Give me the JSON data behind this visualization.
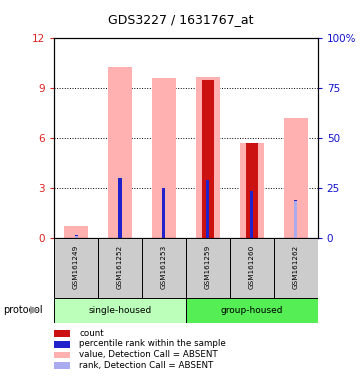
{
  "title": "GDS3227 / 1631767_at",
  "samples": [
    "GSM161249",
    "GSM161252",
    "GSM161253",
    "GSM161259",
    "GSM161260",
    "GSM161262"
  ],
  "pink_bars": [
    0.7,
    10.3,
    9.6,
    9.7,
    5.7,
    7.2
  ],
  "red_bars": [
    0.0,
    0.0,
    0.0,
    9.5,
    5.7,
    0.0
  ],
  "blue_bars": [
    0.2,
    3.6,
    3.0,
    3.5,
    2.8,
    2.3
  ],
  "lightblue_bars": [
    0.15,
    0.0,
    0.0,
    0.0,
    0.0,
    2.2
  ],
  "ylim_left": [
    0,
    12
  ],
  "ylim_right": [
    0,
    100
  ],
  "yticks_left": [
    0,
    3,
    6,
    9,
    12
  ],
  "ytick_labels_left": [
    "0",
    "3",
    "6",
    "9",
    "12"
  ],
  "yticks_right": [
    0,
    25,
    50,
    75,
    100
  ],
  "ytick_labels_right": [
    "0",
    "25",
    "50",
    "75",
    "100%"
  ],
  "color_pink": "#FFB0B0",
  "color_red": "#CC1111",
  "color_blue": "#2222CC",
  "color_lightblue": "#AAAAEE",
  "color_group_light": "#BBFFBB",
  "color_group_dark": "#55EE55",
  "color_sample_bg": "#CCCCCC",
  "protocol_label": "protocol",
  "legend_items": [
    {
      "color": "#CC1111",
      "label": "count"
    },
    {
      "color": "#2222CC",
      "label": "percentile rank within the sample"
    },
    {
      "color": "#FFB0B0",
      "label": "value, Detection Call = ABSENT"
    },
    {
      "color": "#AAAAEE",
      "label": "rank, Detection Call = ABSENT"
    }
  ]
}
